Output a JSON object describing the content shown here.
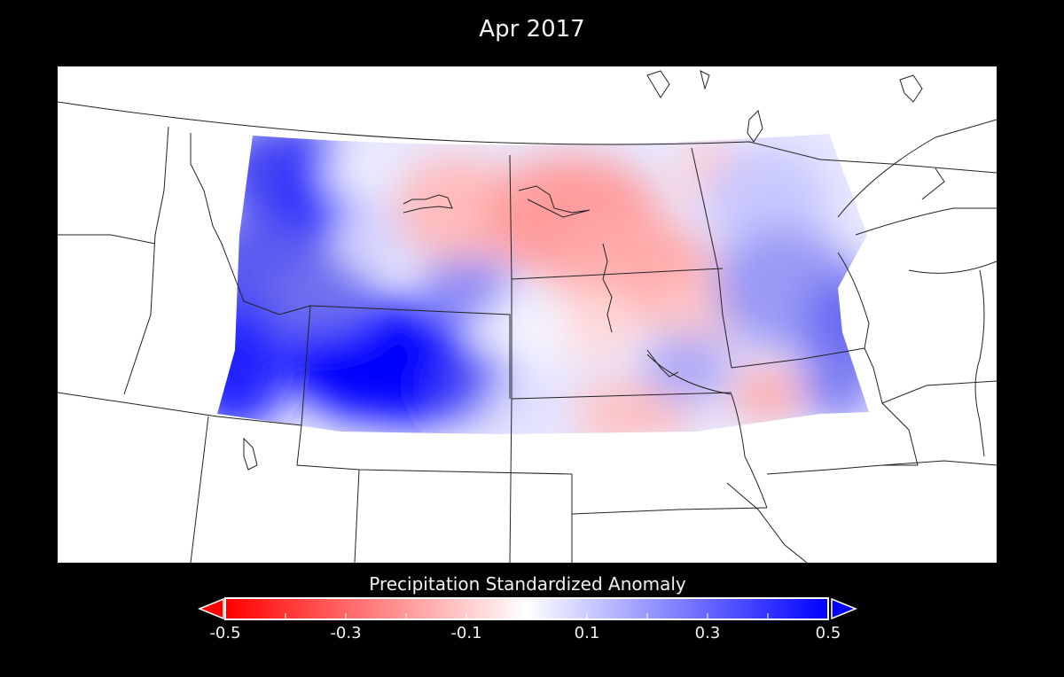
{
  "title": "Apr 2017",
  "colorbar": {
    "label": "Precipitation Standardized Anomaly",
    "min": -0.5,
    "max": 0.5,
    "extend": "both",
    "colors": {
      "negative": "#ff0000",
      "neutral": "#ffffff",
      "positive": "#0000ff"
    },
    "ticks": [
      "-0.5",
      "-0.3",
      "-0.1",
      "0.1",
      "0.3",
      "0.5"
    ]
  }
}
